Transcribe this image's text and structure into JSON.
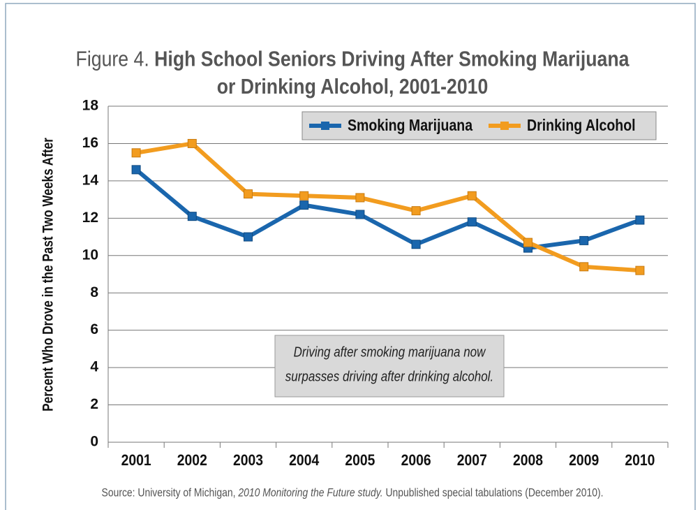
{
  "chart_data": {
    "type": "line",
    "title_prefix": "Figure 4.",
    "title": [
      "High School Seniors Driving After Smoking Marijuana",
      "or Drinking Alcohol, 2001-2010"
    ],
    "y_label": "Percent Who Drove in the Past Two Weeks After",
    "categories": [
      "2001",
      "2002",
      "2003",
      "2004",
      "2005",
      "2006",
      "2007",
      "2008",
      "2009",
      "2010"
    ],
    "series": [
      {
        "name": "Smoking Marijuana",
        "color": "#1a66ad",
        "values": [
          14.6,
          12.1,
          11.0,
          12.7,
          12.2,
          10.6,
          11.8,
          10.4,
          10.8,
          11.9
        ]
      },
      {
        "name": "Drinking Alcohol",
        "color": "#f29c1f",
        "values": [
          15.5,
          16.0,
          13.3,
          13.2,
          13.1,
          12.4,
          13.2,
          10.7,
          9.4,
          9.2
        ]
      }
    ],
    "ylim": [
      0,
      18
    ],
    "yticks": [
      0,
      2,
      4,
      6,
      8,
      10,
      12,
      14,
      16,
      18
    ],
    "grid": true,
    "annotation": [
      "Driving after smoking marijuana now",
      "surpasses driving after drinking alcohol."
    ],
    "source": [
      "Source: University of Michigan, ",
      "2010 Monitoring the Future study.",
      " Unpublished special tabulations (December 2010)."
    ]
  }
}
